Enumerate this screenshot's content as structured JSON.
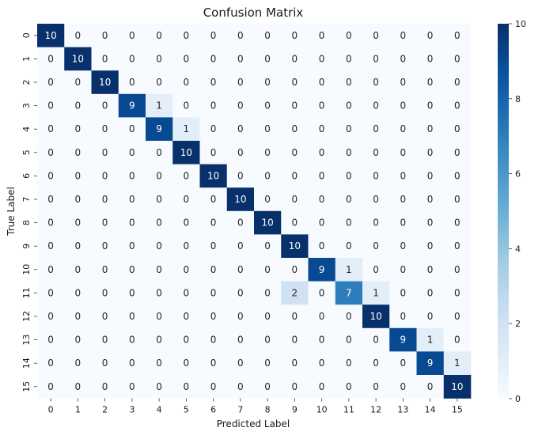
{
  "chart_data": {
    "type": "heatmap",
    "title": "Confusion Matrix",
    "xlabel": "Predicted Label",
    "ylabel": "True Label",
    "x_categories": [
      "0",
      "1",
      "2",
      "3",
      "4",
      "5",
      "6",
      "7",
      "8",
      "9",
      "10",
      "11",
      "12",
      "13",
      "14",
      "15"
    ],
    "y_categories": [
      "0",
      "1",
      "2",
      "3",
      "4",
      "5",
      "6",
      "7",
      "8",
      "9",
      "10",
      "11",
      "12",
      "13",
      "14",
      "15"
    ],
    "values": [
      [
        10,
        0,
        0,
        0,
        0,
        0,
        0,
        0,
        0,
        0,
        0,
        0,
        0,
        0,
        0,
        0
      ],
      [
        0,
        10,
        0,
        0,
        0,
        0,
        0,
        0,
        0,
        0,
        0,
        0,
        0,
        0,
        0,
        0
      ],
      [
        0,
        0,
        10,
        0,
        0,
        0,
        0,
        0,
        0,
        0,
        0,
        0,
        0,
        0,
        0,
        0
      ],
      [
        0,
        0,
        0,
        9,
        1,
        0,
        0,
        0,
        0,
        0,
        0,
        0,
        0,
        0,
        0,
        0
      ],
      [
        0,
        0,
        0,
        0,
        9,
        1,
        0,
        0,
        0,
        0,
        0,
        0,
        0,
        0,
        0,
        0
      ],
      [
        0,
        0,
        0,
        0,
        0,
        10,
        0,
        0,
        0,
        0,
        0,
        0,
        0,
        0,
        0,
        0
      ],
      [
        0,
        0,
        0,
        0,
        0,
        0,
        10,
        0,
        0,
        0,
        0,
        0,
        0,
        0,
        0,
        0
      ],
      [
        0,
        0,
        0,
        0,
        0,
        0,
        0,
        10,
        0,
        0,
        0,
        0,
        0,
        0,
        0,
        0
      ],
      [
        0,
        0,
        0,
        0,
        0,
        0,
        0,
        0,
        10,
        0,
        0,
        0,
        0,
        0,
        0,
        0
      ],
      [
        0,
        0,
        0,
        0,
        0,
        0,
        0,
        0,
        0,
        10,
        0,
        0,
        0,
        0,
        0,
        0
      ],
      [
        0,
        0,
        0,
        0,
        0,
        0,
        0,
        0,
        0,
        0,
        9,
        1,
        0,
        0,
        0,
        0
      ],
      [
        0,
        0,
        0,
        0,
        0,
        0,
        0,
        0,
        0,
        2,
        0,
        7,
        1,
        0,
        0,
        0
      ],
      [
        0,
        0,
        0,
        0,
        0,
        0,
        0,
        0,
        0,
        0,
        0,
        0,
        10,
        0,
        0,
        0
      ],
      [
        0,
        0,
        0,
        0,
        0,
        0,
        0,
        0,
        0,
        0,
        0,
        0,
        0,
        9,
        1,
        0
      ],
      [
        0,
        0,
        0,
        0,
        0,
        0,
        0,
        0,
        0,
        0,
        0,
        0,
        0,
        0,
        9,
        1
      ],
      [
        0,
        0,
        0,
        0,
        0,
        0,
        0,
        0,
        0,
        0,
        0,
        0,
        0,
        0,
        0,
        10
      ]
    ],
    "colorscale": "Blues",
    "vmin": 0,
    "vmax": 10,
    "colorbar_ticks": [
      "0",
      "2",
      "4",
      "6",
      "8",
      "10"
    ],
    "annotations": true
  }
}
